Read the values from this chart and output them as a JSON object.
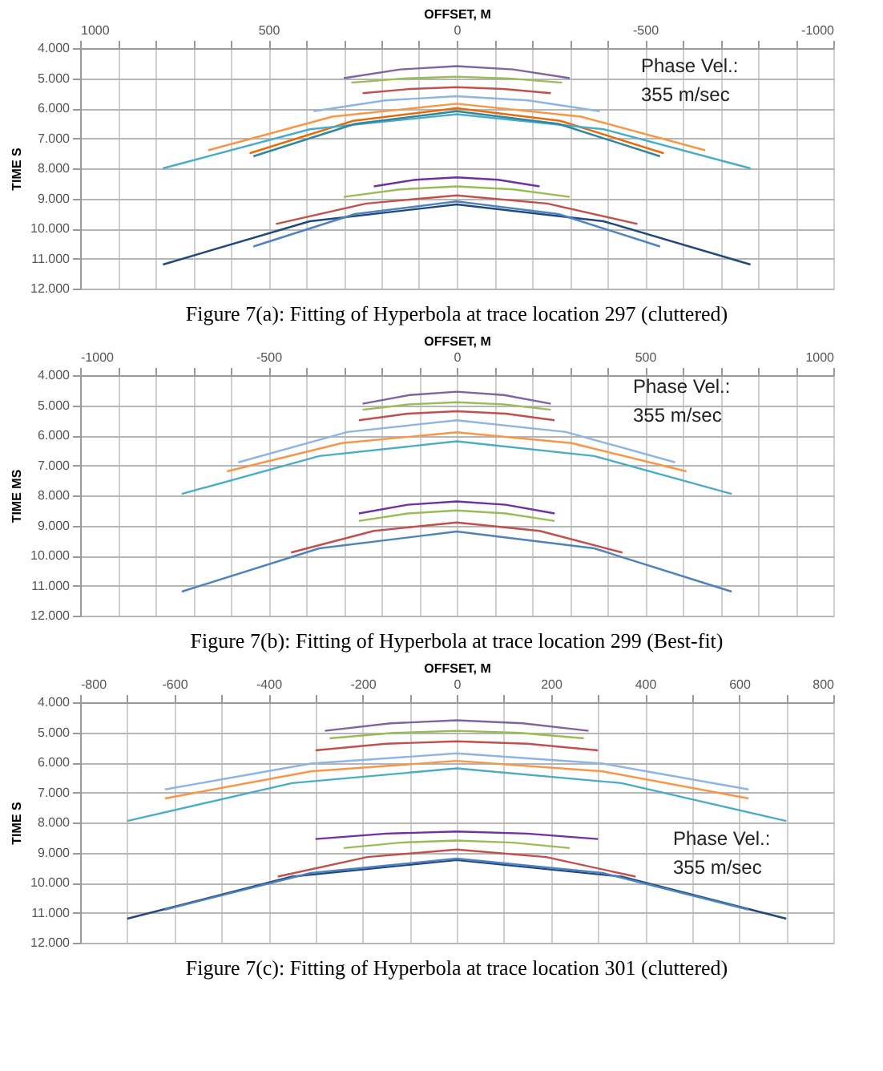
{
  "chart_data": [
    {
      "type": "line",
      "title": "Figure 7(a): Fitting of Hyperbola at trace location 297 (cluttered)",
      "xlabel": "OFFSET, M",
      "ylabel": "TIME S",
      "annotations": [
        "Phase Vel.:\n355 m/sec"
      ],
      "grid": true,
      "legend": false,
      "xlim": [
        1000,
        -1000
      ],
      "xticks": [
        1000,
        {
          "value": 900,
          "label": null
        },
        {
          "value": 800,
          "label": null
        },
        {
          "value": 700,
          "label": null
        },
        {
          "value": 600,
          "label": null
        },
        500,
        {
          "value": 400,
          "label": null
        },
        {
          "value": 300,
          "label": null
        },
        {
          "value": 200,
          "label": null
        },
        {
          "value": 100,
          "label": null
        },
        0,
        {
          "value": -100,
          "label": null
        },
        {
          "value": -200,
          "label": null
        },
        {
          "value": -300,
          "label": null
        },
        {
          "value": -400,
          "label": null
        },
        -500,
        {
          "value": -600,
          "label": null
        },
        {
          "value": -700,
          "label": null
        },
        {
          "value": -800,
          "label": null
        },
        {
          "value": -900,
          "label": null
        },
        -1000
      ],
      "ylim": [
        12000,
        4000
      ],
      "yticks": [
        {
          "value": 4000,
          "label": "4.000"
        },
        {
          "value": 5000,
          "label": "5.000"
        },
        {
          "value": 6000,
          "label": "6.000"
        },
        {
          "value": 7000,
          "label": "7.000"
        },
        {
          "value": 8000,
          "label": "8.000"
        },
        {
          "value": 9000,
          "label": "9.000"
        },
        {
          "value": 10000,
          "label": "10.000"
        },
        {
          "value": 11000,
          "label": "11.000"
        },
        {
          "value": 12000,
          "label": "12.000"
        }
      ],
      "series": [
        {
          "color": "#8064a2",
          "x": [
            -300,
            -150,
            0,
            150,
            300
          ],
          "values": [
            5000,
            4710,
            4600,
            4710,
            5000
          ]
        },
        {
          "color": "#9bbb59",
          "x": [
            -280,
            -140,
            0,
            140,
            280
          ],
          "values": [
            5150,
            5010,
            4950,
            5010,
            5150
          ]
        },
        {
          "color": "#c0504d",
          "x": [
            -250,
            -125,
            0,
            125,
            250
          ],
          "values": [
            5500,
            5360,
            5300,
            5360,
            5500
          ]
        },
        {
          "color": "#8eb4e3",
          "x": [
            -380,
            -190,
            0,
            190,
            380
          ],
          "values": [
            6100,
            5740,
            5600,
            5740,
            6100
          ]
        },
        {
          "color": "#f79646",
          "x": [
            -660,
            -330,
            0,
            330,
            660
          ],
          "values": [
            7400,
            6280,
            5850,
            6280,
            7400
          ]
        },
        {
          "color": "#e46c0a",
          "x": [
            -550,
            -275,
            0,
            275,
            550
          ],
          "values": [
            7500,
            6420,
            6000,
            6420,
            7500
          ]
        },
        {
          "color": "#4bacc6",
          "x": [
            -780,
            -390,
            0,
            390,
            780
          ],
          "values": [
            8000,
            6700,
            6200,
            6700,
            8000
          ]
        },
        {
          "color": "#31859c",
          "x": [
            -540,
            -270,
            0,
            270,
            540
          ],
          "values": [
            7600,
            6520,
            6100,
            6520,
            7600
          ]
        },
        {
          "color": "#7030a0",
          "x": [
            -220,
            -110,
            0,
            110,
            220
          ],
          "values": [
            8600,
            8380,
            8300,
            8380,
            8600
          ]
        },
        {
          "color": "#9bbb59",
          "x": [
            -300,
            -150,
            0,
            150,
            300
          ],
          "values": [
            8950,
            8700,
            8600,
            8700,
            8950
          ]
        },
        {
          "color": "#c0504d",
          "x": [
            -480,
            -240,
            0,
            240,
            480
          ],
          "values": [
            9850,
            9170,
            8900,
            9170,
            9850
          ]
        },
        {
          "color": "#1f497d",
          "x": [
            -780,
            -390,
            0,
            390,
            780
          ],
          "values": [
            11200,
            9760,
            9200,
            9760,
            11200
          ]
        },
        {
          "color": "#4f81bd",
          "x": [
            -540,
            -270,
            0,
            270,
            540
          ],
          "values": [
            10600,
            9520,
            9100,
            9520,
            10600
          ]
        }
      ]
    },
    {
      "type": "line",
      "title": "Figure 7(b): Fitting of Hyperbola at trace location 299 (Best-fit)",
      "xlabel": "OFFSET, M",
      "ylabel": "TIME MS",
      "annotations": [
        "Phase Vel.:\n355 m/sec"
      ],
      "grid": true,
      "legend": false,
      "xlim": [
        -1000,
        1000
      ],
      "xticks": [
        -1000,
        {
          "value": -900,
          "label": null
        },
        {
          "value": -800,
          "label": null
        },
        {
          "value": -700,
          "label": null
        },
        {
          "value": -600,
          "label": null
        },
        -500,
        {
          "value": -400,
          "label": null
        },
        {
          "value": -300,
          "label": null
        },
        {
          "value": -200,
          "label": null
        },
        {
          "value": -100,
          "label": null
        },
        0,
        {
          "value": 100,
          "label": null
        },
        {
          "value": 200,
          "label": null
        },
        {
          "value": 300,
          "label": null
        },
        {
          "value": 400,
          "label": null
        },
        500,
        {
          "value": 600,
          "label": null
        },
        {
          "value": 700,
          "label": null
        },
        {
          "value": 800,
          "label": null
        },
        {
          "value": 900,
          "label": null
        },
        1000
      ],
      "ylim": [
        12000,
        4000
      ],
      "yticks": [
        {
          "value": 4000,
          "label": "4.000"
        },
        {
          "value": 5000,
          "label": "5.000"
        },
        {
          "value": 6000,
          "label": "6.000"
        },
        {
          "value": 7000,
          "label": "7.000"
        },
        {
          "value": 8000,
          "label": "8.000"
        },
        {
          "value": 9000,
          "label": "9.000"
        },
        {
          "value": 10000,
          "label": "10.000"
        },
        {
          "value": 11000,
          "label": "11.000"
        },
        {
          "value": 12000,
          "label": "12.000"
        }
      ],
      "series": [
        {
          "color": "#8064a2",
          "x": [
            -250,
            -125,
            0,
            125,
            250
          ],
          "values": [
            4950,
            4660,
            4550,
            4660,
            4950
          ]
        },
        {
          "color": "#9bbb59",
          "x": [
            -250,
            -125,
            0,
            125,
            250
          ],
          "values": [
            5150,
            4970,
            4900,
            4970,
            5150
          ]
        },
        {
          "color": "#c0504d",
          "x": [
            -260,
            -130,
            0,
            130,
            260
          ],
          "values": [
            5500,
            5280,
            5200,
            5280,
            5500
          ]
        },
        {
          "color": "#8eb4e3",
          "x": [
            -580,
            -290,
            0,
            290,
            580
          ],
          "values": [
            6900,
            5890,
            5500,
            5890,
            6900
          ]
        },
        {
          "color": "#f79646",
          "x": [
            -610,
            -305,
            0,
            305,
            610
          ],
          "values": [
            7200,
            6260,
            5900,
            6260,
            7200
          ]
        },
        {
          "color": "#4bacc6",
          "x": [
            -730,
            -365,
            0,
            365,
            730
          ],
          "values": [
            7950,
            6690,
            6200,
            6690,
            7950
          ]
        },
        {
          "color": "#7030a0",
          "x": [
            -260,
            -130,
            0,
            130,
            260
          ],
          "values": [
            8600,
            8310,
            8200,
            8310,
            8600
          ]
        },
        {
          "color": "#9bbb59",
          "x": [
            -260,
            -130,
            0,
            130,
            260
          ],
          "values": [
            8850,
            8600,
            8500,
            8600,
            8850
          ]
        },
        {
          "color": "#c0504d",
          "x": [
            -440,
            -220,
            0,
            220,
            440
          ],
          "values": [
            9900,
            9180,
            8900,
            9180,
            9900
          ]
        },
        {
          "color": "#4f81bd",
          "x": [
            -730,
            -365,
            0,
            365,
            730
          ],
          "values": [
            11200,
            9760,
            9200,
            9760,
            11200
          ]
        }
      ]
    },
    {
      "type": "line",
      "title": "Figure 7(c): Fitting of Hyperbola at trace location 301 (cluttered)",
      "xlabel": "OFFSET, M",
      "ylabel": "TIME S",
      "annotations": [
        "Phase Vel.:\n355 m/sec"
      ],
      "grid": true,
      "legend": false,
      "xlim": [
        -800,
        800
      ],
      "xticks": [
        -800,
        {
          "value": -700,
          "label": null
        },
        -600,
        {
          "value": -500,
          "label": null
        },
        -400,
        {
          "value": -300,
          "label": null
        },
        -200,
        {
          "value": -100,
          "label": null
        },
        0,
        {
          "value": 100,
          "label": null
        },
        200,
        {
          "value": 300,
          "label": null
        },
        400,
        {
          "value": 500,
          "label": null
        },
        600,
        {
          "value": 700,
          "label": null
        },
        800
      ],
      "ylim": [
        12000,
        4000
      ],
      "yticks": [
        {
          "value": 4000,
          "label": "4.000"
        },
        {
          "value": 5000,
          "label": "5.000"
        },
        {
          "value": 6000,
          "label": "6.000"
        },
        {
          "value": 7000,
          "label": "7.000"
        },
        {
          "value": 8000,
          "label": "8.000"
        },
        {
          "value": 9000,
          "label": "9.000"
        },
        {
          "value": 10000,
          "label": "10.000"
        },
        {
          "value": 11000,
          "label": "11.000"
        },
        {
          "value": 12000,
          "label": "12.000"
        }
      ],
      "series": [
        {
          "color": "#8064a2",
          "x": [
            -280,
            -140,
            0,
            140,
            280
          ],
          "values": [
            4950,
            4700,
            4600,
            4700,
            4950
          ]
        },
        {
          "color": "#9bbb59",
          "x": [
            -270,
            -135,
            0,
            135,
            270
          ],
          "values": [
            5200,
            5020,
            4950,
            5020,
            5200
          ]
        },
        {
          "color": "#c0504d",
          "x": [
            -300,
            -150,
            0,
            150,
            300
          ],
          "values": [
            5600,
            5380,
            5300,
            5380,
            5600
          ]
        },
        {
          "color": "#8eb4e3",
          "x": [
            -620,
            -310,
            0,
            310,
            620
          ],
          "values": [
            6900,
            6040,
            5700,
            6040,
            6900
          ]
        },
        {
          "color": "#f79646",
          "x": [
            -620,
            -310,
            0,
            310,
            620
          ],
          "values": [
            7200,
            6300,
            5950,
            6300,
            7200
          ]
        },
        {
          "color": "#4bacc6",
          "x": [
            -700,
            -350,
            0,
            350,
            700
          ],
          "values": [
            7950,
            6690,
            6200,
            6690,
            7950
          ]
        },
        {
          "color": "#7030a0",
          "x": [
            -300,
            -150,
            0,
            150,
            300
          ],
          "values": [
            8550,
            8370,
            8300,
            8370,
            8550
          ]
        },
        {
          "color": "#9bbb59",
          "x": [
            -240,
            -120,
            0,
            120,
            240
          ],
          "values": [
            8850,
            8670,
            8600,
            8670,
            8850
          ]
        },
        {
          "color": "#c0504d",
          "x": [
            -380,
            -190,
            0,
            190,
            380
          ],
          "values": [
            9800,
            9150,
            8900,
            9150,
            9800
          ]
        },
        {
          "color": "#1f497d",
          "x": [
            -700,
            -350,
            0,
            350,
            700
          ],
          "values": [
            11200,
            9800,
            9250,
            9800,
            11200
          ]
        },
        {
          "color": "#4f81bd",
          "x": [
            -620,
            -310,
            0,
            310,
            620
          ],
          "values": [
            10900,
            9680,
            9200,
            9680,
            10900
          ]
        }
      ]
    }
  ]
}
